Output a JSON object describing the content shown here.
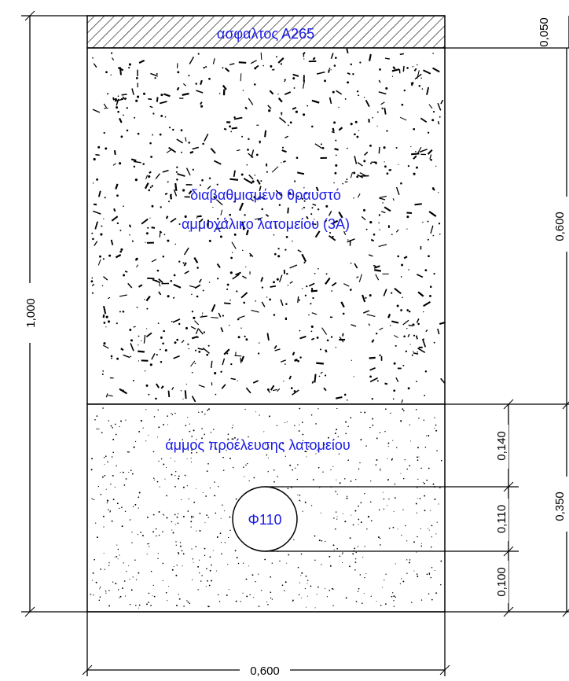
{
  "layers": {
    "asphalt": "ασφαλτος Α265",
    "aggregate_line1": "διαβαθμισμένο θραυστό",
    "aggregate_line2": "αμμοχάλικο λατομείου (3Α)",
    "sand": "άμμος προέλευσης λατομείου"
  },
  "pipe": {
    "label": "Φ110"
  },
  "dimensions": {
    "total_depth": "1,000",
    "asphalt_thickness": "0,050",
    "aggregate_thickness": "0,600",
    "sand_thickness": "0,350",
    "sand_above_pipe": "0,140",
    "pipe_diameter": "0,110",
    "sand_below_pipe": "0,100",
    "trench_width": "0,600"
  },
  "colors": {
    "label": "#1a1ae6",
    "lines": "#000000"
  }
}
